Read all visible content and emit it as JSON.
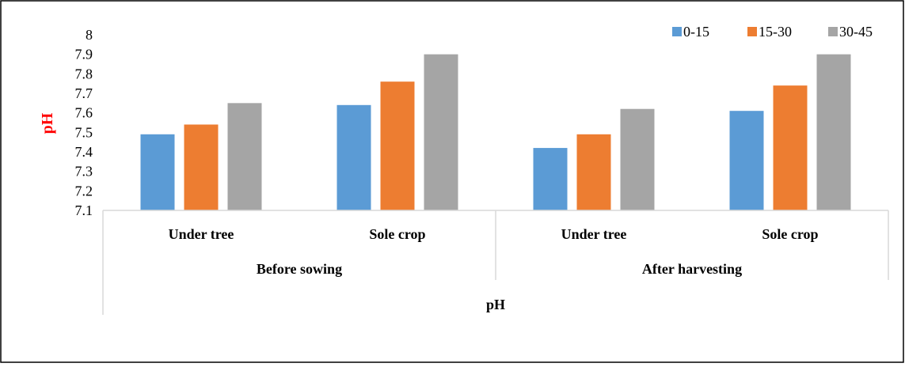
{
  "chart_data": {
    "type": "bar",
    "ylabel": "pH",
    "xlabel": "pH",
    "ylim": [
      7.1,
      8.0
    ],
    "yticks": [
      "7.1",
      "7.2",
      "7.3",
      "7.4",
      "7.5",
      "7.6",
      "7.7",
      "7.8",
      "7.9",
      "8"
    ],
    "categories": [
      {
        "group": "Before sowing",
        "label": "Under tree"
      },
      {
        "group": "Before sowing",
        "label": "Sole crop"
      },
      {
        "group": "After harvesting",
        "label": "Under tree"
      },
      {
        "group": "After harvesting",
        "label": "Sole crop"
      }
    ],
    "groups": [
      "Before sowing",
      "After harvesting"
    ],
    "series": [
      {
        "name": "0-15",
        "color": "#5b9bd5",
        "values": [
          7.49,
          7.64,
          7.42,
          7.61
        ]
      },
      {
        "name": "15-30",
        "color": "#ed7d31",
        "values": [
          7.54,
          7.76,
          7.49,
          7.74
        ]
      },
      {
        "name": "30-45",
        "color": "#a5a5a5",
        "values": [
          7.65,
          7.9,
          7.62,
          7.9
        ]
      }
    ],
    "legend_position": "top-right",
    "grid": false,
    "ylabel_color": "#ff0000"
  }
}
